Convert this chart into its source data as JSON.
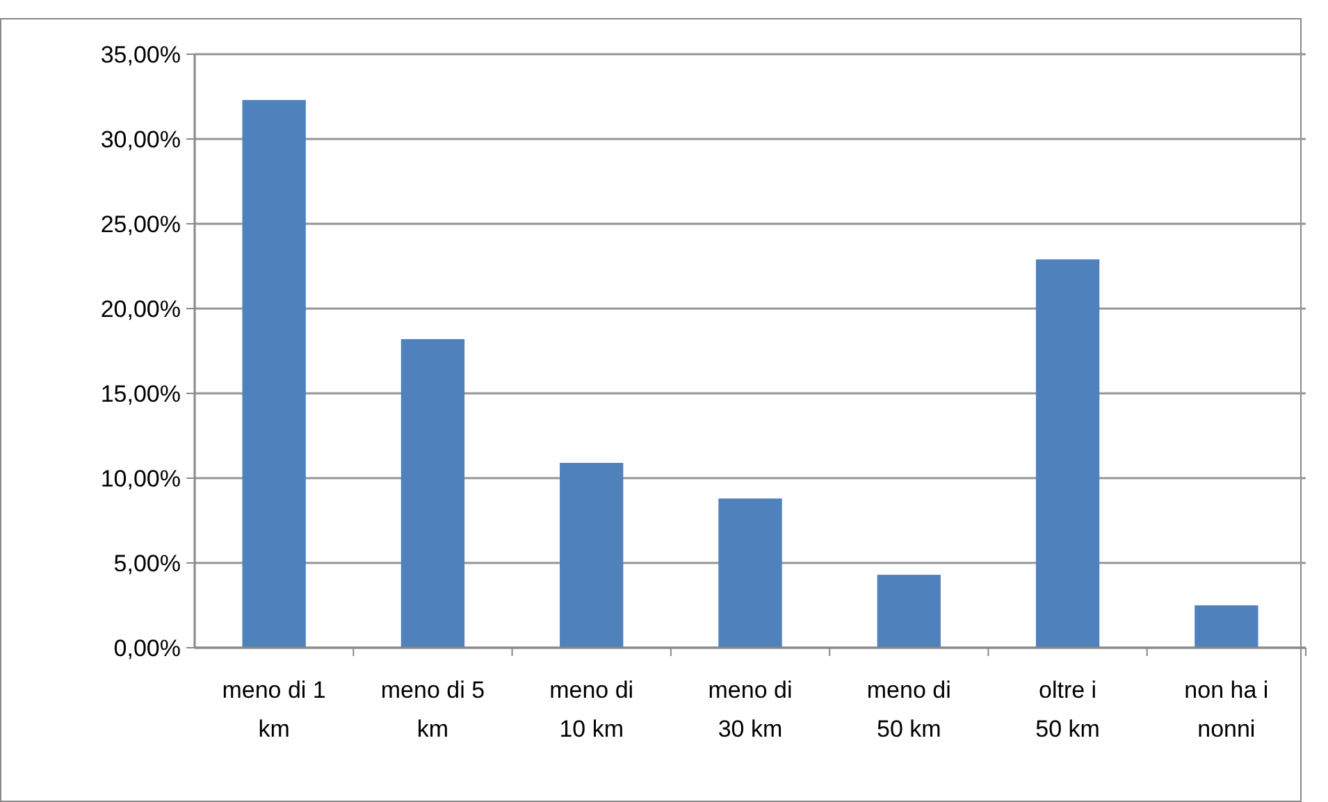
{
  "chart_data": {
    "type": "bar",
    "categories": [
      "meno di 1 km",
      "meno di 5 km",
      "meno di 10 km",
      "meno di 30 km",
      "meno di 50 km",
      "oltre i 50 km",
      "non ha i nonni"
    ],
    "values": [
      32.3,
      18.2,
      10.9,
      8.8,
      4.3,
      22.9,
      2.5
    ],
    "color": "#4f81bd",
    "ylim": [
      0,
      35
    ],
    "yticks": [
      {
        "value": 0,
        "label": "0,00%"
      },
      {
        "value": 5,
        "label": "5,00%"
      },
      {
        "value": 10,
        "label": "10,00%"
      },
      {
        "value": 15,
        "label": "15,00%"
      },
      {
        "value": 20,
        "label": "20,00%"
      },
      {
        "value": 25,
        "label": "25,00%"
      },
      {
        "value": 30,
        "label": "30,00%"
      },
      {
        "value": 35,
        "label": "35,00%"
      }
    ],
    "grid": "y"
  }
}
